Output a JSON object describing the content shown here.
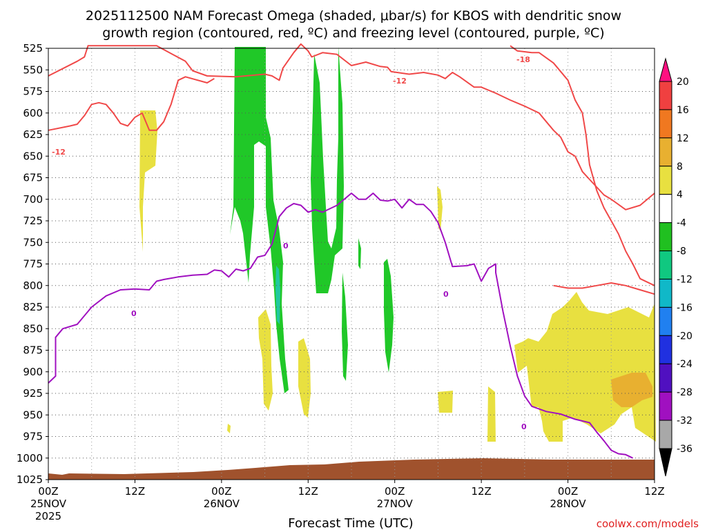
{
  "chart_data": {
    "type": "contour",
    "title_line1": "2025112500 NAM Forecast Omega (shaded, μbar/s) for KBOS with dendritic snow",
    "title_line2": "growth region (contoured, red, ºC) and freezing level (contoured, purple, ºC)",
    "xlabel": "Forecast Time (UTC)",
    "credit": "coolwx.com/models",
    "x_hours_range": [
      0,
      84
    ],
    "ylim": [
      1025,
      525
    ],
    "y_ticks": [
      "525",
      "550",
      "575",
      "600",
      "625",
      "650",
      "675",
      "700",
      "725",
      "750",
      "775",
      "800",
      "825",
      "850",
      "875",
      "900",
      "925",
      "950",
      "975",
      "1000",
      "1025"
    ],
    "x_ticks": [
      {
        "h": 0,
        "l1": "00Z",
        "l2": "25NOV",
        "l3": "2025"
      },
      {
        "h": 12,
        "l1": "12Z",
        "l2": "",
        "l3": ""
      },
      {
        "h": 24,
        "l1": "00Z",
        "l2": "26NOV",
        "l3": ""
      },
      {
        "h": 36,
        "l1": "12Z",
        "l2": "",
        "l3": ""
      },
      {
        "h": 48,
        "l1": "00Z",
        "l2": "27NOV",
        "l3": ""
      },
      {
        "h": 60,
        "l1": "12Z",
        "l2": "",
        "l3": ""
      },
      {
        "h": 72,
        "l1": "00Z",
        "l2": "28NOV",
        "l3": ""
      },
      {
        "h": 84,
        "l1": "12Z",
        "l2": "",
        "l3": ""
      }
    ],
    "colorbar": {
      "labels": [
        "20",
        "16",
        "12",
        "8",
        "4",
        "-4",
        "-8",
        "-12",
        "-16",
        "-20",
        "-24",
        "-28",
        "-32",
        "-36"
      ],
      "colors": [
        "#ff1080",
        "#f04040",
        "#f07820",
        "#e8b030",
        "#e8e040",
        "#ffffff",
        "#20c020",
        "#10c880",
        "#10b8c8",
        "#2080f0",
        "#2030e0",
        "#5010c0",
        "#a010c0",
        "#a8a8a8",
        "#000000"
      ]
    },
    "contour_labels": {
      "dgz_low": "-12",
      "dgz_high": "-18",
      "freezing": "0"
    },
    "series": [
      {
        "name": "-12",
        "color": "#f04848",
        "points": [
          [
            0,
            557
          ],
          [
            4,
            540
          ],
          [
            5,
            535
          ],
          [
            5.5,
            522
          ],
          [
            15,
            522
          ],
          [
            19,
            540
          ],
          [
            20,
            551
          ],
          [
            22,
            557
          ],
          [
            26,
            558
          ],
          [
            30,
            555
          ],
          [
            31,
            557
          ],
          [
            32,
            562
          ],
          [
            32.5,
            548
          ],
          [
            34,
            530
          ],
          [
            35,
            520
          ],
          [
            36,
            528
          ],
          [
            36.5,
            535
          ],
          [
            38,
            530
          ],
          [
            40,
            532
          ],
          [
            42,
            545
          ],
          [
            44,
            541
          ],
          [
            46,
            546
          ],
          [
            47,
            547
          ],
          [
            47.5,
            552
          ],
          [
            50,
            555
          ],
          [
            52,
            553
          ],
          [
            54,
            556
          ],
          [
            55,
            560
          ],
          [
            56,
            553
          ],
          [
            57,
            558
          ],
          [
            59,
            570
          ],
          [
            60,
            570
          ],
          [
            62,
            577
          ],
          [
            64,
            585
          ],
          [
            66,
            592
          ],
          [
            68,
            600
          ],
          [
            69,
            610
          ],
          [
            70,
            620
          ],
          [
            71,
            628
          ],
          [
            72,
            645
          ],
          [
            73,
            650
          ],
          [
            74,
            668
          ],
          [
            75,
            677
          ],
          [
            77,
            695
          ],
          [
            78,
            700
          ],
          [
            80,
            712
          ],
          [
            82,
            707
          ],
          [
            84,
            693
          ]
        ]
      },
      {
        "name": "-12-lower",
        "color": "#f04848",
        "points": [
          [
            0,
            620
          ],
          [
            3,
            615
          ],
          [
            4,
            613
          ],
          [
            5,
            603
          ],
          [
            6,
            590
          ],
          [
            7,
            588
          ],
          [
            8,
            590
          ],
          [
            9,
            600
          ],
          [
            10,
            612
          ],
          [
            11,
            615
          ],
          [
            12,
            605
          ],
          [
            13,
            600
          ],
          [
            14,
            620
          ],
          [
            15,
            620
          ],
          [
            16,
            610
          ],
          [
            17,
            590
          ],
          [
            18,
            562
          ],
          [
            19,
            558
          ],
          [
            22,
            565
          ],
          [
            23,
            560
          ]
        ]
      },
      {
        "name": "-18",
        "color": "#f04848",
        "points": [
          [
            64,
            522
          ],
          [
            65,
            528
          ],
          [
            67,
            530
          ],
          [
            68,
            530
          ],
          [
            70,
            542
          ],
          [
            72,
            562
          ],
          [
            73,
            585
          ],
          [
            74,
            600
          ],
          [
            74.5,
            625
          ],
          [
            75,
            660
          ],
          [
            76,
            690
          ],
          [
            77,
            710
          ],
          [
            78,
            725
          ],
          [
            79,
            740
          ],
          [
            80,
            760
          ],
          [
            81,
            775
          ],
          [
            82,
            792
          ],
          [
            84,
            800
          ]
        ]
      },
      {
        "name": "-18-upper",
        "color": "#f04848",
        "points": [
          [
            70,
            800
          ],
          [
            72,
            803
          ],
          [
            74,
            803
          ],
          [
            76,
            800
          ],
          [
            78,
            797
          ],
          [
            80,
            800
          ],
          [
            82,
            805
          ],
          [
            84,
            810
          ]
        ]
      },
      {
        "name": "0",
        "color": "#a010c0",
        "points": [
          [
            0,
            913
          ],
          [
            1,
            905
          ],
          [
            1,
            860
          ],
          [
            2,
            850
          ],
          [
            4,
            845
          ],
          [
            6,
            825
          ],
          [
            8,
            812
          ],
          [
            10,
            805
          ],
          [
            12,
            804
          ],
          [
            14,
            805
          ],
          [
            15,
            795
          ],
          [
            16,
            793
          ],
          [
            18,
            790
          ],
          [
            20,
            788
          ],
          [
            22,
            787
          ],
          [
            23,
            782
          ],
          [
            24,
            783
          ],
          [
            25,
            790
          ],
          [
            26,
            781
          ],
          [
            27,
            783
          ],
          [
            28,
            780
          ],
          [
            29,
            767
          ],
          [
            30,
            765
          ],
          [
            31,
            752
          ],
          [
            32,
            720
          ],
          [
            33,
            710
          ],
          [
            34,
            705
          ],
          [
            35,
            707
          ],
          [
            36,
            715
          ],
          [
            37,
            712
          ],
          [
            38,
            715
          ],
          [
            39,
            711
          ],
          [
            40,
            707
          ],
          [
            41,
            700
          ],
          [
            42,
            693
          ],
          [
            43,
            700
          ],
          [
            44,
            700
          ],
          [
            45,
            693
          ],
          [
            46,
            701
          ],
          [
            47,
            702
          ],
          [
            48,
            700
          ],
          [
            49,
            710
          ],
          [
            50,
            700
          ],
          [
            51,
            706
          ],
          [
            52,
            706
          ],
          [
            53,
            714
          ],
          [
            54,
            727
          ],
          [
            55,
            750
          ],
          [
            56,
            778
          ],
          [
            58,
            777
          ],
          [
            59,
            775
          ],
          [
            60,
            795
          ],
          [
            61,
            780
          ],
          [
            62,
            775
          ],
          [
            62,
            785
          ],
          [
            63,
            830
          ],
          [
            64,
            870
          ],
          [
            65,
            905
          ],
          [
            66,
            928
          ],
          [
            67,
            940
          ],
          [
            69,
            946
          ],
          [
            71,
            949
          ],
          [
            73,
            955
          ],
          [
            75,
            959
          ],
          [
            76,
            970
          ],
          [
            77,
            980
          ],
          [
            78,
            991
          ],
          [
            79,
            995
          ],
          [
            80,
            996
          ],
          [
            81,
            1000
          ]
        ]
      }
    ]
  }
}
